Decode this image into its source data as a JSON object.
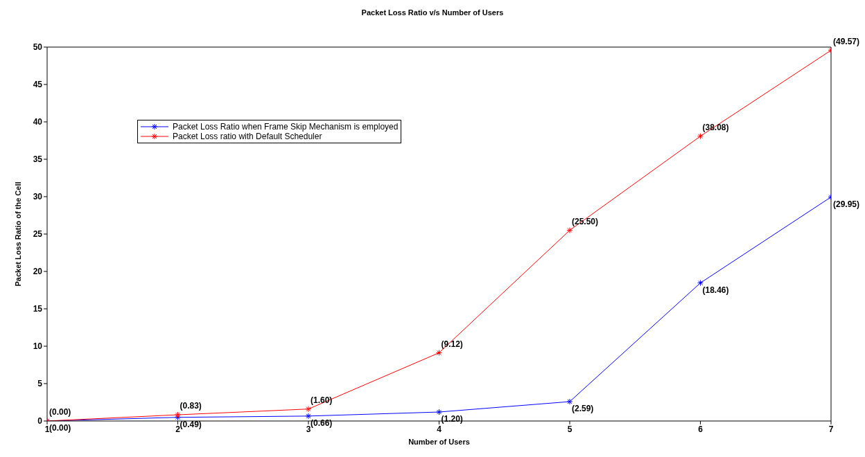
{
  "chart_data": {
    "type": "line",
    "title": "Packet Loss Ratio v/s Number of Users",
    "xlabel": "Number of Users",
    "ylabel": "Packet Loss Ratio of the Cell",
    "x": [
      1,
      2,
      3,
      4,
      5,
      6,
      7
    ],
    "series": [
      {
        "name": "Packet Loss Ratio when Frame Skip Mechanism is employed",
        "color": "#0000ff",
        "values": [
          0,
          0.49,
          0.66,
          1.2,
          2.59,
          18.46,
          29.95
        ],
        "value_labels": [
          "(0.00)",
          "(0.49)",
          "(0.66)",
          "(1.20)",
          "(2.59)",
          "(18.46)",
          "(29.95)"
        ]
      },
      {
        "name": "Packet Loss ratio with Default Scheduler",
        "color": "#ff0000",
        "values": [
          0,
          0.83,
          1.6,
          9.12,
          25.5,
          38.08,
          49.57
        ],
        "value_labels": [
          "(0.00)",
          "(0.83)",
          "(1.60)",
          "(9.12)",
          "(25.50)",
          "(38.08)",
          "(49.57)"
        ]
      }
    ],
    "xlim": [
      1,
      7
    ],
    "xticks": [
      1,
      2,
      3,
      4,
      5,
      6,
      7
    ],
    "ylim": [
      0,
      50
    ],
    "yticks": [
      0,
      5,
      10,
      15,
      20,
      25,
      30,
      35,
      40,
      45,
      50
    ],
    "grid": false,
    "legend": "top left",
    "marker": "cross",
    "line_style": "solid"
  }
}
